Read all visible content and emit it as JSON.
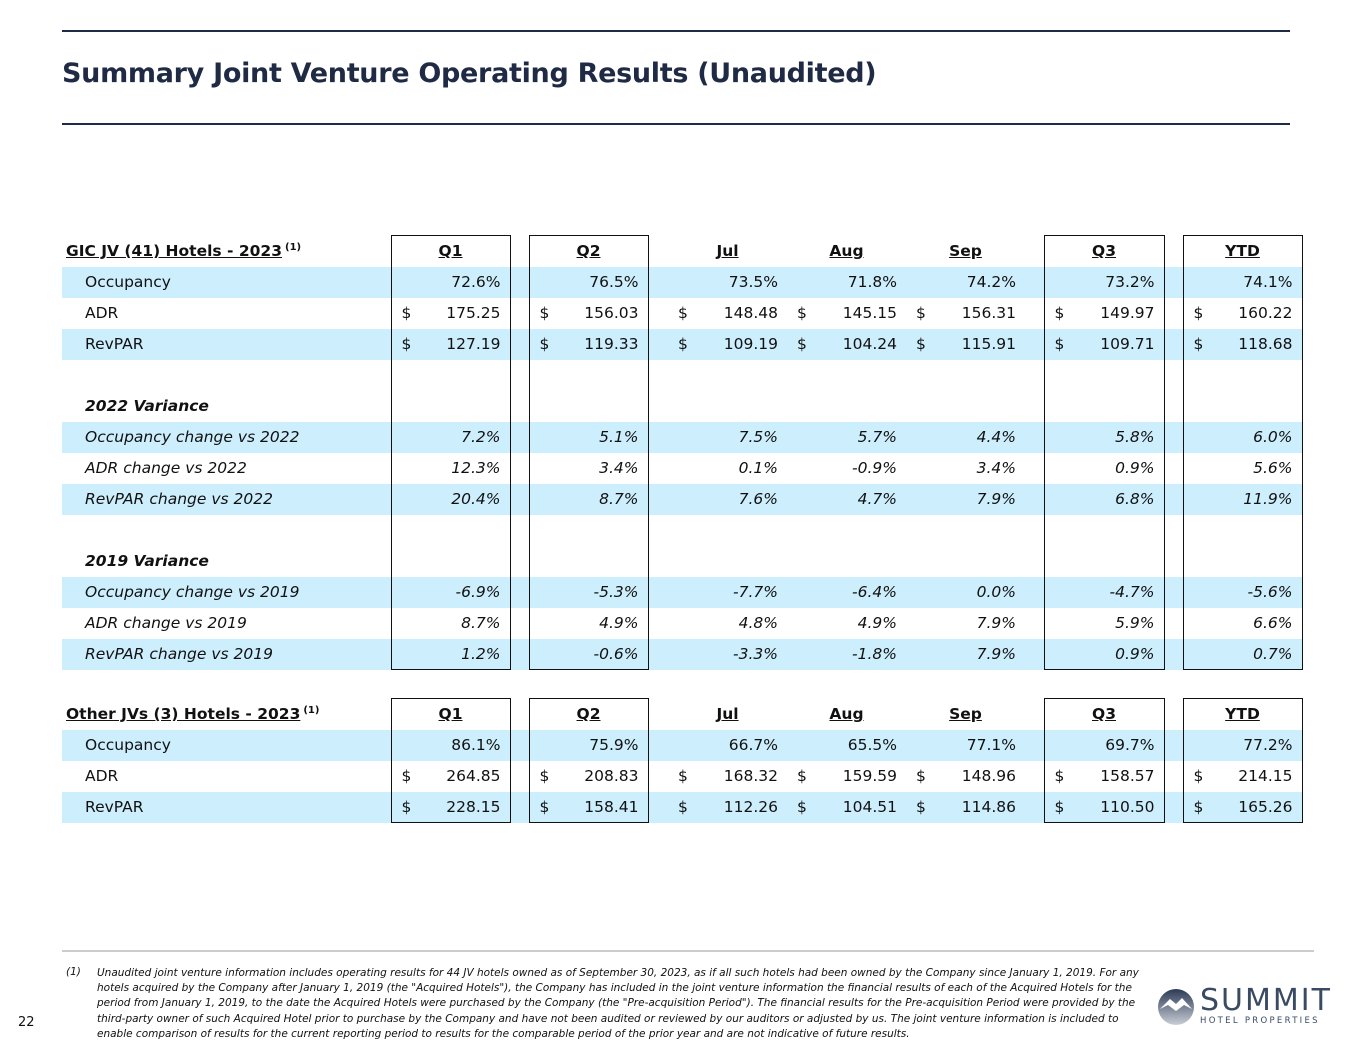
{
  "title": "Summary Joint Venture Operating Results (Unaudited)",
  "columns": [
    "Q1",
    "Q2",
    "Jul",
    "Aug",
    "Sep",
    "Q3",
    "YTD"
  ],
  "tables": [
    {
      "heading": "GIC JV (41) Hotels - 2023",
      "footnote_ref": "(1)",
      "rows": [
        {
          "label": "Occupancy",
          "values": [
            "72.6%",
            "76.5%",
            "73.5%",
            "71.8%",
            "74.2%",
            "73.2%",
            "74.1%"
          ],
          "band": true
        },
        {
          "label": "ADR",
          "dollar": true,
          "values": [
            "175.25",
            "156.03",
            "148.48",
            "145.15",
            "156.31",
            "149.97",
            "160.22"
          ]
        },
        {
          "label": "RevPAR",
          "dollar": true,
          "values": [
            "127.19",
            "119.33",
            "109.19",
            "104.24",
            "115.91",
            "109.71",
            "118.68"
          ],
          "band": true
        },
        {
          "blank": true
        },
        {
          "label": "2022 Variance",
          "section": true
        },
        {
          "label": "Occupancy change vs 2022",
          "italic": true,
          "band": true,
          "values": [
            "7.2%",
            "5.1%",
            "7.5%",
            "5.7%",
            "4.4%",
            "5.8%",
            "6.0%"
          ]
        },
        {
          "label": "ADR change vs 2022",
          "italic": true,
          "values": [
            "12.3%",
            "3.4%",
            "0.1%",
            "-0.9%",
            "3.4%",
            "0.9%",
            "5.6%"
          ]
        },
        {
          "label": "RevPAR change vs 2022",
          "italic": true,
          "band": true,
          "values": [
            "20.4%",
            "8.7%",
            "7.6%",
            "4.7%",
            "7.9%",
            "6.8%",
            "11.9%"
          ]
        },
        {
          "blank": true
        },
        {
          "label": "2019 Variance",
          "section": true
        },
        {
          "label": "Occupancy change vs 2019",
          "italic": true,
          "band": true,
          "values": [
            "-6.9%",
            "-5.3%",
            "-7.7%",
            "-6.4%",
            "0.0%",
            "-4.7%",
            "-5.6%"
          ]
        },
        {
          "label": "ADR change vs 2019",
          "italic": true,
          "values": [
            "8.7%",
            "4.9%",
            "4.8%",
            "4.9%",
            "7.9%",
            "5.9%",
            "6.6%"
          ]
        },
        {
          "label": "RevPAR change vs 2019",
          "italic": true,
          "band": true,
          "values": [
            "1.2%",
            "-0.6%",
            "-3.3%",
            "-1.8%",
            "7.9%",
            "0.9%",
            "0.7%"
          ]
        }
      ]
    },
    {
      "heading": "Other JVs (3) Hotels - 2023",
      "footnote_ref": "(1)",
      "rows": [
        {
          "label": "Occupancy",
          "band": true,
          "values": [
            "86.1%",
            "75.9%",
            "66.7%",
            "65.5%",
            "77.1%",
            "69.7%",
            "77.2%"
          ]
        },
        {
          "label": "ADR",
          "dollar": true,
          "values": [
            "264.85",
            "208.83",
            "168.32",
            "159.59",
            "148.96",
            "158.57",
            "214.15"
          ]
        },
        {
          "label": "RevPAR",
          "dollar": true,
          "band": true,
          "values": [
            "228.15",
            "158.41",
            "112.26",
            "104.51",
            "114.86",
            "110.50",
            "165.26"
          ]
        }
      ]
    }
  ],
  "currency_symbol": "$",
  "footnote": {
    "marker": "(1)",
    "text": "Unaudited joint venture information includes operating results for 44 JV hotels owned as of September 30, 2023, as if all such hotels had been owned by the Company since January 1, 2019. For any hotels acquired by the Company after January 1, 2019 (the \"Acquired Hotels\"), the Company has included in the joint venture information the financial results of each of the Acquired Hotels for the period from January 1, 2019, to the date the Acquired Hotels were purchased by the Company (the \"Pre-acquisition Period\"). The financial results for the Pre-acquisition Period were provided by the third-party owner of such Acquired Hotel prior to purchase by the Company and have not been audited or reviewed by our auditors or adjusted by us. The joint venture information is included to enable comparison of results for the current reporting period to results for the comparable period of the prior year and are not indicative of future results."
  },
  "page_number": "22",
  "logo": {
    "name": "SUMMIT",
    "sub": "HOTEL PROPERTIES"
  },
  "colors": {
    "title": "#1f2a44",
    "band": "#cdeefc"
  }
}
